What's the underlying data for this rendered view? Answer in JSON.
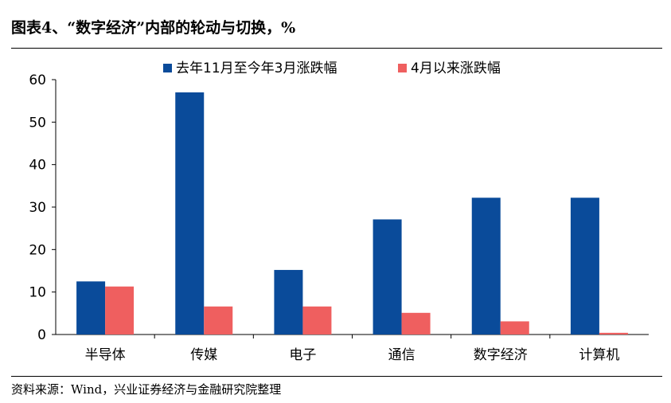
{
  "header": {
    "title": "图表4、“数字经济”内部的轮动与切换，%"
  },
  "footer": {
    "source": "资料来源：Wind，兴业证券经济与金融研究院整理"
  },
  "chart_data": {
    "type": "bar",
    "categories": [
      "半导体",
      "传媒",
      "电子",
      "通信",
      "数字经济",
      "计算机"
    ],
    "series": [
      {
        "name": "去年11月至今年3月涨跌幅",
        "color": "#0a4b9a",
        "values": [
          12.5,
          57.0,
          15.2,
          27.1,
          32.2,
          32.2
        ]
      },
      {
        "name": "4月以来涨跌幅",
        "color": "#ef5f5f",
        "values": [
          11.3,
          6.6,
          6.6,
          5.1,
          3.1,
          0.4
        ]
      }
    ],
    "ylim": [
      0,
      60
    ],
    "yticks": [
      0,
      10,
      20,
      30,
      40,
      50,
      60
    ],
    "legend_position": "top",
    "grid": false
  }
}
